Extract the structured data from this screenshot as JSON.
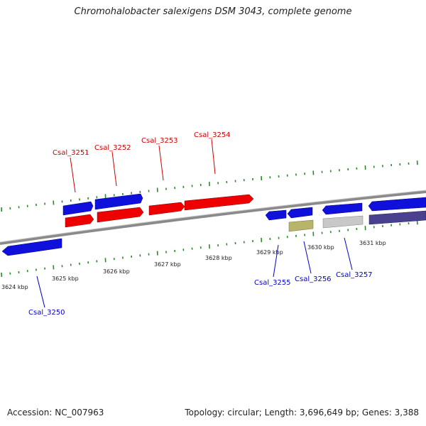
{
  "title": "Chromohalobacter salexigens DSM 3043, complete genome",
  "footer": {
    "accession": "Accession: NC_007963",
    "summary": "Topology: circular; Length: 3,696,649 bp; Genes: 3,388"
  },
  "colors": {
    "backbone": "#8a8a8a",
    "tick": "#2a8a2a",
    "forward_label": "#cc0000",
    "reverse_label": "#0000cc"
  },
  "positions": [
    {
      "label": "3624 kbp"
    },
    {
      "label": "3625 kbp"
    },
    {
      "label": "3626 kbp"
    },
    {
      "label": "3627 kbp"
    },
    {
      "label": "3628 kbp"
    },
    {
      "label": "3629 kbp"
    },
    {
      "label": "3630 kbp"
    },
    {
      "label": "3631 kbp"
    }
  ],
  "gene_labels": [
    {
      "text": "Csal_3251",
      "strand": "forward"
    },
    {
      "text": "Csal_3252",
      "strand": "forward"
    },
    {
      "text": "Csal_3253",
      "strand": "forward"
    },
    {
      "text": "Csal_3254",
      "strand": "forward"
    },
    {
      "text": "Csal_3250",
      "strand": "reverse"
    },
    {
      "text": "Csal_3255",
      "strand": "reverse"
    },
    {
      "text": "Csal_3256",
      "strand": "reverse"
    },
    {
      "text": "Csal_3257",
      "strand": "reverse"
    }
  ]
}
